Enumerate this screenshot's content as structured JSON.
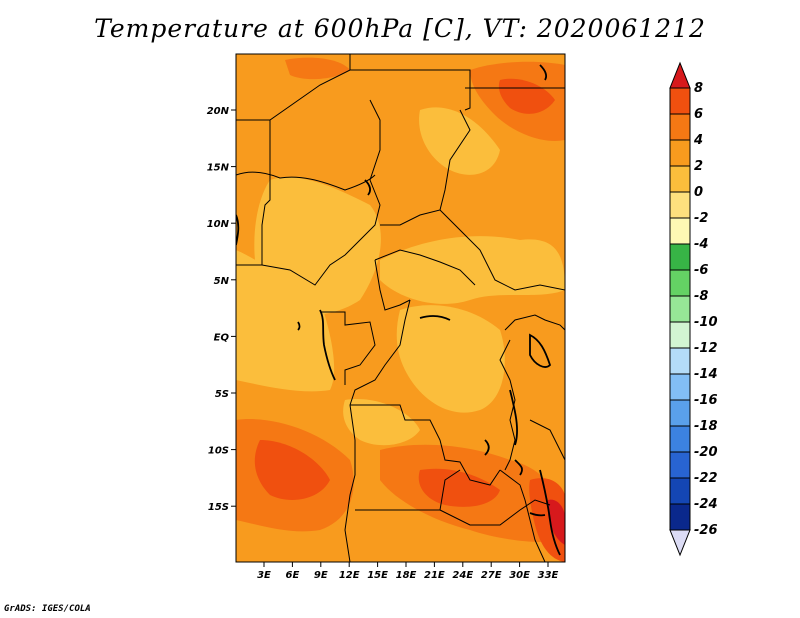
{
  "title": "Temperature at 600hPa [C], VT: 2020061212",
  "credit": "GrADS: IGES/COLA",
  "map": {
    "lat_labels": [
      "20N",
      "15N",
      "10N",
      "5N",
      "EQ",
      "5S",
      "10S",
      "15S"
    ],
    "lon_labels": [
      "3E",
      "6E",
      "9E",
      "12E",
      "15E",
      "18E",
      "21E",
      "24E",
      "27E",
      "30E",
      "33E"
    ]
  },
  "colorbar": {
    "labels": [
      "8",
      "6",
      "4",
      "2",
      "0",
      "-2",
      "-4",
      "-6",
      "-8",
      "-10",
      "-12",
      "-14",
      "-16",
      "-18",
      "-20",
      "-22",
      "-24",
      "-26"
    ],
    "colors": [
      "#d7191c",
      "#f0500f",
      "#f57814",
      "#f89b1e",
      "#fbbe3c",
      "#fde07e",
      "#fdf8b4",
      "#37b446",
      "#64d264",
      "#96e696",
      "#d2f5d2",
      "#b4dcf8",
      "#82bef5",
      "#5aa0eb",
      "#3c82e1",
      "#2864d2",
      "#1446b4",
      "#0a288c",
      "#050a5a",
      "#dcdcf5"
    ]
  },
  "field": {
    "palette": [
      "#fbbe3c",
      "#f89b1e",
      "#f57814",
      "#f0500f",
      "#d7191c"
    ]
  }
}
